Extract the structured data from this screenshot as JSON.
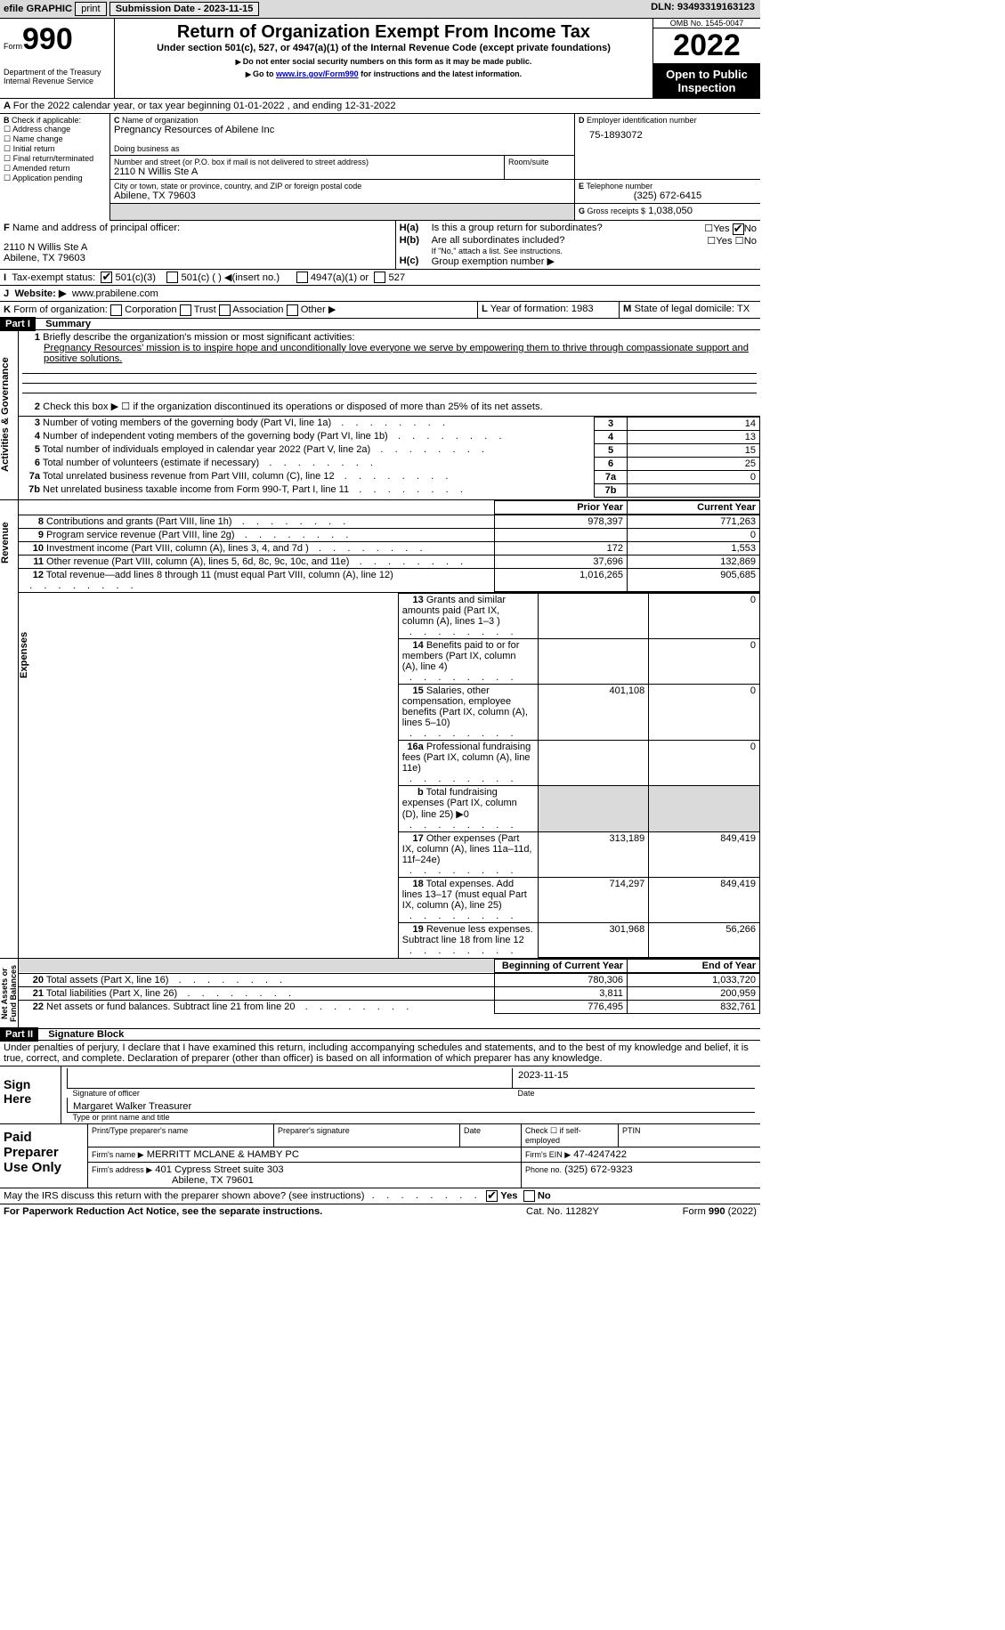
{
  "toolbar": {
    "efile": "efile GRAPHIC",
    "print": "print",
    "subdate_lbl": "Submission Date - 2023-11-15",
    "dln_lbl": "DLN: 93493319163123"
  },
  "header": {
    "form": "990",
    "form_word": "Form",
    "title": "Return of Organization Exempt From Income Tax",
    "subtitle": "Under section 501(c), 527, or 4947(a)(1) of the Internal Revenue Code (except private foundations)",
    "note1": "Do not enter social security numbers on this form as it may be made public.",
    "note2_pre": "Go to ",
    "note2_link": "www.irs.gov/Form990",
    "note2_post": " for instructions and the latest information.",
    "dept": "Department of the Treasury",
    "irs": "Internal Revenue Service",
    "omb": "OMB No. 1545-0047",
    "year": "2022",
    "open": "Open to Public Inspection"
  },
  "A": {
    "line": "For the 2022 calendar year, or tax year beginning 01-01-2022   , and ending 12-31-2022"
  },
  "B": {
    "label": "Check if applicable:",
    "items": [
      "Address change",
      "Name change",
      "Initial return",
      "Final return/terminated",
      "Amended return",
      "Application pending"
    ]
  },
  "C": {
    "name_lbl": "Name of organization",
    "name": "Pregnancy Resources of Abilene Inc",
    "dba_lbl": "Doing business as",
    "addr_lbl": "Number and street (or P.O. box if mail is not delivered to street address)",
    "room_lbl": "Room/suite",
    "addr": "2110 N Willis Ste A",
    "city_lbl": "City or town, state or province, country, and ZIP or foreign postal code",
    "city": "Abilene, TX  79603"
  },
  "D": {
    "lbl": "Employer identification number",
    "val": "75-1893072"
  },
  "E": {
    "lbl": "Telephone number",
    "val": "(325) 672-6415"
  },
  "G": {
    "lbl": "Gross receipts $",
    "val": "1,038,050"
  },
  "F": {
    "lbl": "Name and address of principal officer:",
    "val1": "2110 N Willis Ste A",
    "val2": "Abilene, TX  79603"
  },
  "H": {
    "a": "Is this a group return for subordinates?",
    "b": "Are all subordinates included?",
    "b_note": "If \"No,\" attach a list. See instructions.",
    "c": "Group exemption number ▶",
    "yes": "Yes",
    "no": "No"
  },
  "I": {
    "lbl": "Tax-exempt status:",
    "o1": "501(c)(3)",
    "o2": "501(c) (  ) ◀(insert no.)",
    "o3": "4947(a)(1) or",
    "o4": "527"
  },
  "J": {
    "lbl": "Website: ▶",
    "val": "www.prabilene.com"
  },
  "K": {
    "lbl": "Form of organization:",
    "o1": "Corporation",
    "o2": "Trust",
    "o3": "Association",
    "o4": "Other ▶"
  },
  "L": {
    "lbl": "Year of formation: 1983"
  },
  "M": {
    "lbl": "State of legal domicile: TX"
  },
  "part1": {
    "title": "Part I",
    "sub": "Summary",
    "side_ag": "Activities & Governance",
    "side_rev": "Revenue",
    "side_exp": "Expenses",
    "side_net": "Net Assets or Fund Balances",
    "l1": "Briefly describe the organization's mission or most significant activities:",
    "l1v": "Pregnancy Resources' mission is to inspire hope and unconditionally love everyone we serve by empowering them to thrive through compassionate support and positive solutions.",
    "l2": "Check this box ▶ ☐  if the organization discontinued its operations or disposed of more than 25% of its net assets.",
    "rows_ag": [
      {
        "n": "3",
        "t": "Number of voting members of the governing body (Part VI, line 1a)",
        "v": "14"
      },
      {
        "n": "4",
        "t": "Number of independent voting members of the governing body (Part VI, line 1b)",
        "v": "13"
      },
      {
        "n": "5",
        "t": "Total number of individuals employed in calendar year 2022 (Part V, line 2a)",
        "v": "15"
      },
      {
        "n": "6",
        "t": "Total number of volunteers (estimate if necessary)",
        "v": "25"
      },
      {
        "n": "7a",
        "t": "Total unrelated business revenue from Part VIII, column (C), line 12",
        "v": "0"
      },
      {
        "n": "7b",
        "t": "Net unrelated business taxable income from Form 990-T, Part I, line 11",
        "v": ""
      }
    ],
    "hdr_prior": "Prior Year",
    "hdr_curr": "Current Year",
    "rows_rev": [
      {
        "n": "8",
        "t": "Contributions and grants (Part VIII, line 1h)",
        "p": "978,397",
        "c": "771,263"
      },
      {
        "n": "9",
        "t": "Program service revenue (Part VIII, line 2g)",
        "p": "",
        "c": "0"
      },
      {
        "n": "10",
        "t": "Investment income (Part VIII, column (A), lines 3, 4, and 7d )",
        "p": "172",
        "c": "1,553"
      },
      {
        "n": "11",
        "t": "Other revenue (Part VIII, column (A), lines 5, 6d, 8c, 9c, 10c, and 11e)",
        "p": "37,696",
        "c": "132,869"
      },
      {
        "n": "12",
        "t": "Total revenue—add lines 8 through 11 (must equal Part VIII, column (A), line 12)",
        "p": "1,016,265",
        "c": "905,685"
      }
    ],
    "rows_exp": [
      {
        "n": "13",
        "t": "Grants and similar amounts paid (Part IX, column (A), lines 1–3 )",
        "p": "",
        "c": "0"
      },
      {
        "n": "14",
        "t": "Benefits paid to or for members (Part IX, column (A), line 4)",
        "p": "",
        "c": "0"
      },
      {
        "n": "15",
        "t": "Salaries, other compensation, employee benefits (Part IX, column (A), lines 5–10)",
        "p": "401,108",
        "c": "0"
      },
      {
        "n": "16a",
        "t": "Professional fundraising fees (Part IX, column (A), line 11e)",
        "p": "",
        "c": "0"
      },
      {
        "n": "b",
        "t": "Total fundraising expenses (Part IX, column (D), line 25) ▶0",
        "p": "GRAY",
        "c": "GRAY"
      },
      {
        "n": "17",
        "t": "Other expenses (Part IX, column (A), lines 11a–11d, 11f–24e)",
        "p": "313,189",
        "c": "849,419"
      },
      {
        "n": "18",
        "t": "Total expenses. Add lines 13–17 (must equal Part IX, column (A), line 25)",
        "p": "714,297",
        "c": "849,419"
      },
      {
        "n": "19",
        "t": "Revenue less expenses. Subtract line 18 from line 12",
        "p": "301,968",
        "c": "56,266"
      }
    ],
    "hdr_boy": "Beginning of Current Year",
    "hdr_eoy": "End of Year",
    "rows_net": [
      {
        "n": "20",
        "t": "Total assets (Part X, line 16)",
        "p": "780,306",
        "c": "1,033,720"
      },
      {
        "n": "21",
        "t": "Total liabilities (Part X, line 26)",
        "p": "3,811",
        "c": "200,959"
      },
      {
        "n": "22",
        "t": "Net assets or fund balances. Subtract line 21 from line 20",
        "p": "776,495",
        "c": "832,761"
      }
    ]
  },
  "part2": {
    "title": "Part II",
    "sub": "Signature Block",
    "decl": "Under penalties of perjury, I declare that I have examined this return, including accompanying schedules and statements, and to the best of my knowledge and belief, it is true, correct, and complete. Declaration of preparer (other than officer) is based on all information of which preparer has any knowledge.",
    "sign_here": "Sign Here",
    "sig_officer": "Signature of officer",
    "date": "Date",
    "sig_date": "2023-11-15",
    "name": "Margaret Walker  Treasurer",
    "name_lbl": "Type or print name and title",
    "paid": "Paid Preparer Use Only",
    "p_name": "Print/Type preparer's name",
    "p_sig": "Preparer's signature",
    "p_date": "Date",
    "p_self": "Check ☐ if self-employed",
    "p_ptin": "PTIN",
    "firm_name_lbl": "Firm's name    ▶",
    "firm_name": "MERRITT MCLANE & HAMBY PC",
    "firm_addr_lbl": "Firm's address ▶",
    "firm_addr": "401 Cypress Street suite 303",
    "firm_city": "Abilene, TX  79601",
    "firm_ein_lbl": "Firm's EIN ▶",
    "firm_ein": "47-4247422",
    "phone_lbl": "Phone no.",
    "phone": "(325) 672-9323",
    "may": "May the IRS discuss this return with the preparer shown above? (see instructions)"
  },
  "footer": {
    "pra": "For Paperwork Reduction Act Notice, see the separate instructions.",
    "cat": "Cat. No. 11282Y",
    "form": "Form 990 (2022)"
  }
}
